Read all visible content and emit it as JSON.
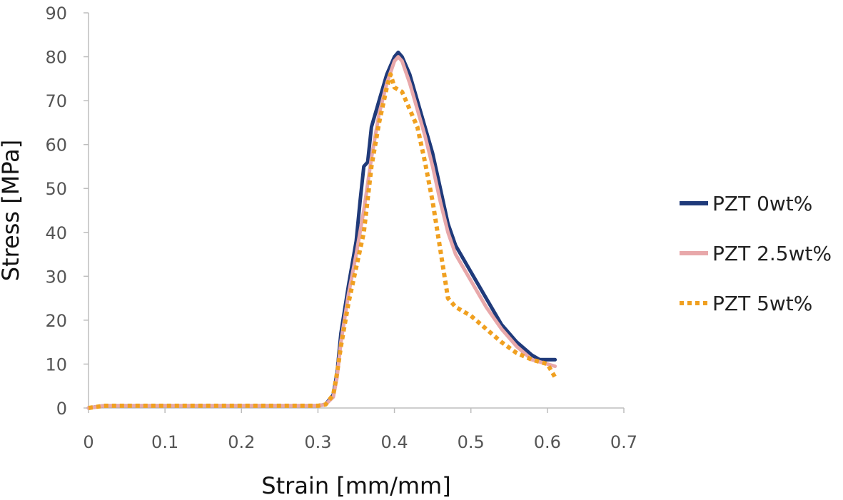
{
  "chart_data": {
    "type": "line",
    "title": "",
    "xlabel": "Strain [mm/mm]",
    "ylabel": "Stress [MPa]",
    "xlim": [
      0,
      0.7
    ],
    "ylim": [
      0,
      90
    ],
    "xticks": [
      0,
      0.1,
      0.2,
      0.3,
      0.4,
      0.5,
      0.6,
      0.7
    ],
    "xtick_labels": [
      "0",
      "0.1",
      "0.2",
      "0.3",
      "0.4",
      "0.5",
      "0.6",
      "0.7"
    ],
    "yticks": [
      0,
      10,
      20,
      30,
      40,
      50,
      60,
      70,
      80,
      90
    ],
    "ytick_labels": [
      "0",
      "10",
      "20",
      "30",
      "40",
      "50",
      "60",
      "70",
      "80",
      "90"
    ],
    "grid": false,
    "legend_position": "right",
    "series": [
      {
        "name": "PZT 0wt%",
        "color": "#1f3a7a",
        "style": "solid",
        "points": [
          [
            0,
            0
          ],
          [
            0.02,
            0.5
          ],
          [
            0.1,
            0.5
          ],
          [
            0.2,
            0.5
          ],
          [
            0.3,
            0.5
          ],
          [
            0.31,
            0.8
          ],
          [
            0.32,
            3
          ],
          [
            0.325,
            8
          ],
          [
            0.33,
            17
          ],
          [
            0.34,
            28
          ],
          [
            0.35,
            38
          ],
          [
            0.355,
            47
          ],
          [
            0.36,
            55
          ],
          [
            0.365,
            56
          ],
          [
            0.37,
            64
          ],
          [
            0.38,
            70
          ],
          [
            0.39,
            76
          ],
          [
            0.4,
            80
          ],
          [
            0.405,
            81
          ],
          [
            0.41,
            80
          ],
          [
            0.42,
            76
          ],
          [
            0.43,
            70
          ],
          [
            0.44,
            64
          ],
          [
            0.45,
            58
          ],
          [
            0.46,
            50
          ],
          [
            0.47,
            42
          ],
          [
            0.48,
            37
          ],
          [
            0.5,
            31
          ],
          [
            0.52,
            25
          ],
          [
            0.54,
            19
          ],
          [
            0.56,
            15
          ],
          [
            0.58,
            12
          ],
          [
            0.59,
            11
          ],
          [
            0.61,
            11
          ]
        ]
      },
      {
        "name": "PZT 2.5wt%",
        "color": "#e8a8aa",
        "style": "solid",
        "points": [
          [
            0,
            0
          ],
          [
            0.02,
            0.5
          ],
          [
            0.1,
            0.5
          ],
          [
            0.2,
            0.5
          ],
          [
            0.3,
            0.5
          ],
          [
            0.31,
            0.8
          ],
          [
            0.32,
            2.5
          ],
          [
            0.325,
            7
          ],
          [
            0.33,
            15
          ],
          [
            0.34,
            26
          ],
          [
            0.35,
            35
          ],
          [
            0.36,
            45
          ],
          [
            0.37,
            57
          ],
          [
            0.38,
            67
          ],
          [
            0.39,
            74
          ],
          [
            0.4,
            79
          ],
          [
            0.405,
            80
          ],
          [
            0.41,
            79
          ],
          [
            0.42,
            74
          ],
          [
            0.43,
            68
          ],
          [
            0.44,
            62
          ],
          [
            0.45,
            55
          ],
          [
            0.46,
            47
          ],
          [
            0.47,
            40
          ],
          [
            0.48,
            35
          ],
          [
            0.5,
            29
          ],
          [
            0.52,
            23
          ],
          [
            0.54,
            18
          ],
          [
            0.56,
            14
          ],
          [
            0.58,
            11
          ],
          [
            0.6,
            10
          ],
          [
            0.61,
            9.5
          ]
        ]
      },
      {
        "name": "PZT 5wt%",
        "color": "#f0a020",
        "style": "dotted",
        "points": [
          [
            0,
            0
          ],
          [
            0.02,
            0.5
          ],
          [
            0.1,
            0.5
          ],
          [
            0.2,
            0.5
          ],
          [
            0.3,
            0.5
          ],
          [
            0.31,
            0.8
          ],
          [
            0.32,
            3
          ],
          [
            0.325,
            8
          ],
          [
            0.33,
            14
          ],
          [
            0.34,
            24
          ],
          [
            0.35,
            32
          ],
          [
            0.36,
            40
          ],
          [
            0.37,
            55
          ],
          [
            0.38,
            65
          ],
          [
            0.39,
            73
          ],
          [
            0.395,
            76
          ],
          [
            0.4,
            73
          ],
          [
            0.41,
            72
          ],
          [
            0.42,
            68
          ],
          [
            0.43,
            64
          ],
          [
            0.44,
            56
          ],
          [
            0.45,
            47
          ],
          [
            0.46,
            36
          ],
          [
            0.47,
            25
          ],
          [
            0.48,
            23
          ],
          [
            0.5,
            21
          ],
          [
            0.52,
            18
          ],
          [
            0.54,
            15
          ],
          [
            0.56,
            12.5
          ],
          [
            0.58,
            11
          ],
          [
            0.6,
            10
          ],
          [
            0.61,
            7
          ]
        ]
      }
    ]
  }
}
